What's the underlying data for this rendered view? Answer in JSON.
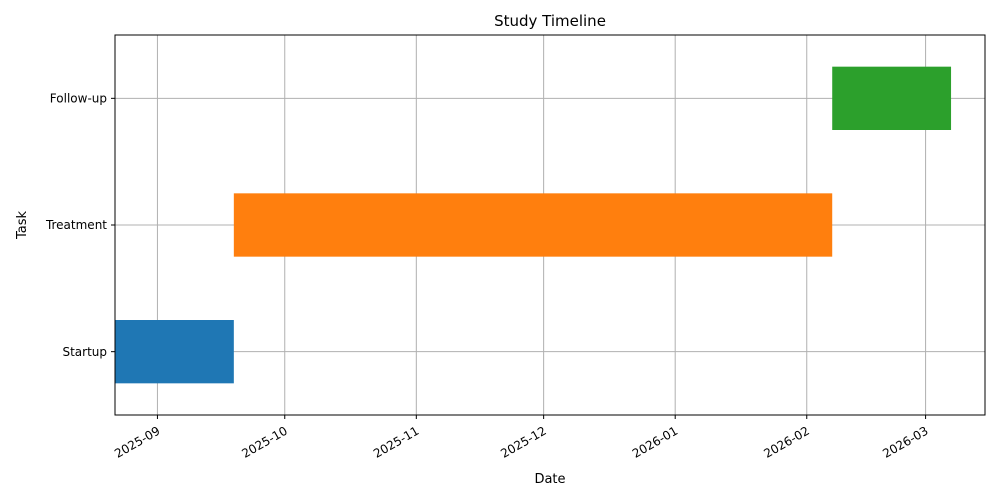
{
  "chart_data": {
    "type": "gantt",
    "title": "Study Timeline",
    "xlabel": "Date",
    "ylabel": "Task",
    "grid": true,
    "x_axis": {
      "type": "date",
      "range": [
        "2025-08-22",
        "2026-03-15"
      ],
      "ticks": [
        "2025-09-01",
        "2025-10-01",
        "2025-11-01",
        "2025-12-01",
        "2026-01-01",
        "2026-02-01",
        "2026-03-01"
      ],
      "tick_labels": [
        "2025-09",
        "2025-10",
        "2025-11",
        "2025-12",
        "2026-01",
        "2026-02",
        "2026-03"
      ]
    },
    "categories": [
      "Startup",
      "Treatment",
      "Follow-up"
    ],
    "tasks": [
      {
        "task": "Startup",
        "start": "2025-08-22",
        "end": "2025-09-19",
        "color": "#1f77b4"
      },
      {
        "task": "Treatment",
        "start": "2025-09-19",
        "end": "2026-02-07",
        "color": "#ff7f0e"
      },
      {
        "task": "Follow-up",
        "start": "2026-02-07",
        "end": "2026-03-07",
        "color": "#2ca02c"
      }
    ]
  }
}
